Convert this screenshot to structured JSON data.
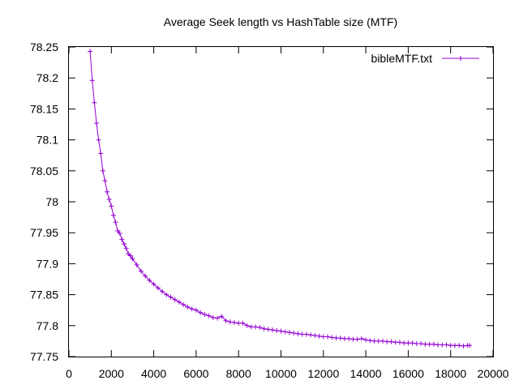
{
  "chart_data": {
    "type": "line",
    "title": "Average Seek length vs HashTable size (MTF)",
    "xlabel": "",
    "ylabel": "",
    "xlim": [
      0,
      20000
    ],
    "ylim": [
      77.75,
      78.25
    ],
    "x_ticks": [
      0,
      2000,
      4000,
      6000,
      8000,
      10000,
      12000,
      14000,
      16000,
      18000,
      20000
    ],
    "x_tick_labels": [
      "0",
      "2000",
      "4000",
      "6000",
      "8000",
      "10000",
      "12000",
      "14000",
      "16000",
      "18000",
      "20000"
    ],
    "y_ticks": [
      77.75,
      77.8,
      77.85,
      77.9,
      77.95,
      78,
      78.05,
      78.1,
      78.15,
      78.2,
      78.25
    ],
    "y_tick_labels": [
      "77.75",
      "77.8",
      "77.85",
      "77.9",
      "77.95",
      "78",
      "78.05",
      "78.1",
      "78.15",
      "78.2",
      "78.25"
    ],
    "grid": false,
    "legend_position": "top-right",
    "series": [
      {
        "name": "bibleMTF.txt",
        "color": "#9400d3",
        "marker": "plus",
        "points": [
          [
            1000,
            78.243
          ],
          [
            1100,
            78.196
          ],
          [
            1200,
            78.16
          ],
          [
            1300,
            78.127
          ],
          [
            1400,
            78.1
          ],
          [
            1500,
            78.078
          ],
          [
            1600,
            78.05
          ],
          [
            1700,
            78.034
          ],
          [
            1800,
            78.016
          ],
          [
            1900,
            78.004
          ],
          [
            2000,
            77.993
          ],
          [
            2100,
            77.978
          ],
          [
            2200,
            77.967
          ],
          [
            2300,
            77.953
          ],
          [
            2400,
            77.949
          ],
          [
            2500,
            77.939
          ],
          [
            2600,
            77.932
          ],
          [
            2700,
            77.925
          ],
          [
            2800,
            77.916
          ],
          [
            2900,
            77.913
          ],
          [
            3000,
            77.908
          ],
          [
            3200,
            77.898
          ],
          [
            3400,
            77.888
          ],
          [
            3600,
            77.88
          ],
          [
            3800,
            77.873
          ],
          [
            4000,
            77.867
          ],
          [
            4200,
            77.861
          ],
          [
            4400,
            77.855
          ],
          [
            4600,
            77.85
          ],
          [
            4800,
            77.846
          ],
          [
            5000,
            77.842
          ],
          [
            5200,
            77.838
          ],
          [
            5400,
            77.834
          ],
          [
            5600,
            77.83
          ],
          [
            5800,
            77.827
          ],
          [
            6000,
            77.825
          ],
          [
            6200,
            77.821
          ],
          [
            6400,
            77.818
          ],
          [
            6600,
            77.816
          ],
          [
            6800,
            77.813
          ],
          [
            7000,
            77.812
          ],
          [
            7200,
            77.815
          ],
          [
            7400,
            77.808
          ],
          [
            7600,
            77.806
          ],
          [
            7800,
            77.805
          ],
          [
            8000,
            77.804
          ],
          [
            8200,
            77.804
          ],
          [
            8400,
            77.8
          ],
          [
            8600,
            77.798
          ],
          [
            8800,
            77.798
          ],
          [
            9000,
            77.797
          ],
          [
            9200,
            77.795
          ],
          [
            9400,
            77.794
          ],
          [
            9600,
            77.793
          ],
          [
            9800,
            77.792
          ],
          [
            10000,
            77.791
          ],
          [
            10200,
            77.79
          ],
          [
            10400,
            77.789
          ],
          [
            10600,
            77.788
          ],
          [
            10800,
            77.787
          ],
          [
            11000,
            77.786
          ],
          [
            11200,
            77.786
          ],
          [
            11400,
            77.785
          ],
          [
            11600,
            77.784
          ],
          [
            11800,
            77.783
          ],
          [
            12000,
            77.782
          ],
          [
            12200,
            77.782
          ],
          [
            12400,
            77.781
          ],
          [
            12600,
            77.78
          ],
          [
            12800,
            77.78
          ],
          [
            13000,
            77.779
          ],
          [
            13200,
            77.779
          ],
          [
            13400,
            77.778
          ],
          [
            13600,
            77.778
          ],
          [
            13800,
            77.779
          ],
          [
            14000,
            77.777
          ],
          [
            14200,
            77.776
          ],
          [
            14400,
            77.775
          ],
          [
            14600,
            77.775
          ],
          [
            14800,
            77.775
          ],
          [
            15000,
            77.774
          ],
          [
            15200,
            77.774
          ],
          [
            15400,
            77.773
          ],
          [
            15600,
            77.773
          ],
          [
            15800,
            77.772
          ],
          [
            16000,
            77.772
          ],
          [
            16200,
            77.772
          ],
          [
            16400,
            77.771
          ],
          [
            16600,
            77.771
          ],
          [
            16800,
            77.77
          ],
          [
            17000,
            77.77
          ],
          [
            17200,
            77.77
          ],
          [
            17400,
            77.769
          ],
          [
            17600,
            77.769
          ],
          [
            17800,
            77.769
          ],
          [
            18000,
            77.768
          ],
          [
            18200,
            77.768
          ],
          [
            18400,
            77.768
          ],
          [
            18600,
            77.767
          ],
          [
            18800,
            77.768
          ],
          [
            18900,
            77.768
          ]
        ]
      }
    ]
  }
}
